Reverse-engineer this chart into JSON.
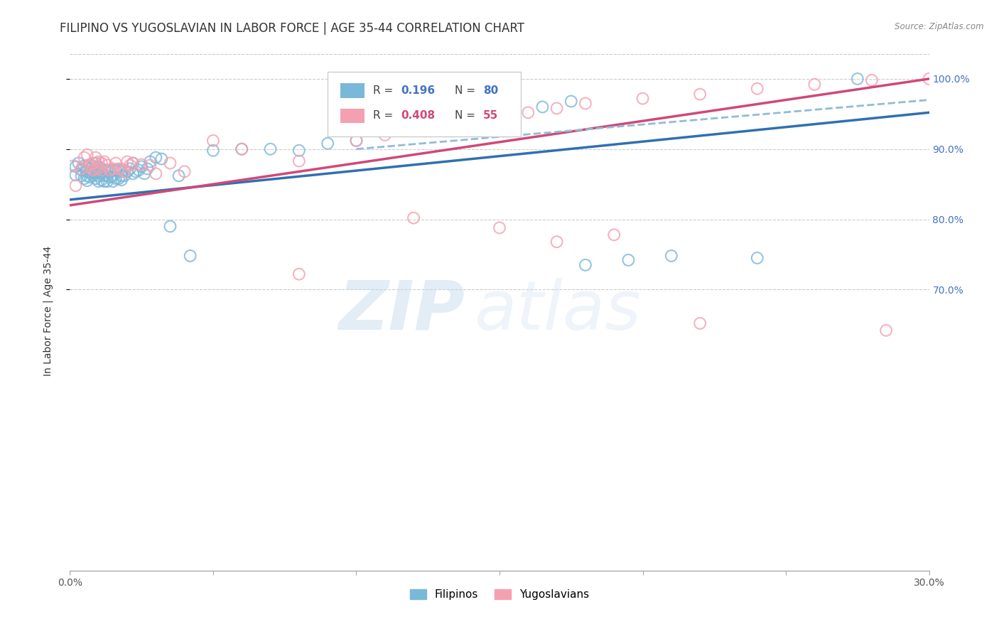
{
  "title": "FILIPINO VS YUGOSLAVIAN IN LABOR FORCE | AGE 35-44 CORRELATION CHART",
  "source": "Source: ZipAtlas.com",
  "ylabel": "In Labor Force | Age 35-44",
  "xlim": [
    0.0,
    0.3
  ],
  "ylim": [
    0.3,
    1.04
  ],
  "yticks_right": [
    0.7,
    0.8,
    0.9,
    1.0
  ],
  "ytick_labels_right": [
    "70.0%",
    "80.0%",
    "90.0%",
    "100.0%"
  ],
  "blue_color": "#7ab8d9",
  "pink_color": "#f4a0b0",
  "blue_line_color": "#3070b0",
  "pink_line_color": "#d04878",
  "dashed_line_color": "#90bcd8",
  "title_fontsize": 12,
  "axis_label_fontsize": 10,
  "tick_fontsize": 10,
  "blue_scatter_x": [
    0.002,
    0.002,
    0.003,
    0.004,
    0.004,
    0.005,
    0.005,
    0.006,
    0.006,
    0.006,
    0.006,
    0.007,
    0.007,
    0.007,
    0.007,
    0.008,
    0.008,
    0.008,
    0.009,
    0.009,
    0.009,
    0.009,
    0.01,
    0.01,
    0.01,
    0.01,
    0.011,
    0.011,
    0.011,
    0.012,
    0.012,
    0.012,
    0.013,
    0.013,
    0.013,
    0.014,
    0.014,
    0.015,
    0.015,
    0.015,
    0.016,
    0.016,
    0.017,
    0.017,
    0.018,
    0.018,
    0.018,
    0.019,
    0.02,
    0.021,
    0.022,
    0.022,
    0.023,
    0.024,
    0.025,
    0.026,
    0.027,
    0.028,
    0.03,
    0.032,
    0.035,
    0.038,
    0.042,
    0.05,
    0.06,
    0.07,
    0.08,
    0.09,
    0.1,
    0.12,
    0.13,
    0.14,
    0.15,
    0.165,
    0.175,
    0.18,
    0.195,
    0.21,
    0.24,
    0.275
  ],
  "blue_scatter_y": [
    0.863,
    0.875,
    0.88,
    0.862,
    0.87,
    0.876,
    0.858,
    0.875,
    0.868,
    0.862,
    0.855,
    0.878,
    0.872,
    0.866,
    0.86,
    0.876,
    0.868,
    0.862,
    0.88,
    0.872,
    0.866,
    0.858,
    0.875,
    0.868,
    0.862,
    0.854,
    0.872,
    0.865,
    0.856,
    0.87,
    0.862,
    0.854,
    0.87,
    0.862,
    0.854,
    0.868,
    0.86,
    0.87,
    0.862,
    0.854,
    0.87,
    0.858,
    0.87,
    0.858,
    0.868,
    0.862,
    0.856,
    0.862,
    0.868,
    0.872,
    0.88,
    0.865,
    0.868,
    0.87,
    0.875,
    0.865,
    0.872,
    0.882,
    0.888,
    0.886,
    0.79,
    0.862,
    0.748,
    0.898,
    0.9,
    0.9,
    0.898,
    0.908,
    0.912,
    0.93,
    0.93,
    0.942,
    0.952,
    0.96,
    0.968,
    0.735,
    0.742,
    0.748,
    0.745,
    1.0
  ],
  "pink_scatter_x": [
    0.001,
    0.002,
    0.004,
    0.005,
    0.006,
    0.006,
    0.007,
    0.008,
    0.008,
    0.009,
    0.009,
    0.01,
    0.01,
    0.011,
    0.011,
    0.012,
    0.013,
    0.014,
    0.015,
    0.016,
    0.017,
    0.018,
    0.019,
    0.02,
    0.021,
    0.022,
    0.025,
    0.028,
    0.03,
    0.035,
    0.04,
    0.05,
    0.06,
    0.08,
    0.1,
    0.11,
    0.12,
    0.13,
    0.14,
    0.16,
    0.17,
    0.18,
    0.2,
    0.22,
    0.24,
    0.26,
    0.28,
    0.3,
    0.15,
    0.19,
    0.08,
    0.12,
    0.17,
    0.22,
    0.285
  ],
  "pink_scatter_y": [
    0.876,
    0.848,
    0.872,
    0.888,
    0.892,
    0.875,
    0.878,
    0.88,
    0.87,
    0.888,
    0.872,
    0.882,
    0.873,
    0.88,
    0.87,
    0.882,
    0.877,
    0.87,
    0.872,
    0.88,
    0.872,
    0.872,
    0.868,
    0.882,
    0.877,
    0.88,
    0.878,
    0.877,
    0.865,
    0.88,
    0.868,
    0.912,
    0.9,
    0.883,
    0.912,
    0.92,
    0.928,
    0.938,
    0.942,
    0.952,
    0.958,
    0.965,
    0.972,
    0.978,
    0.986,
    0.992,
    0.998,
    1.0,
    0.788,
    0.778,
    0.722,
    0.802,
    0.768,
    0.652,
    0.642
  ],
  "blue_trend_x": [
    0.0,
    0.3
  ],
  "blue_trend_y": [
    0.828,
    0.952
  ],
  "pink_trend_x": [
    0.0,
    0.3
  ],
  "pink_trend_y": [
    0.82,
    1.0
  ],
  "dashed_trend_x": [
    0.1,
    0.3
  ],
  "dashed_trend_y": [
    0.9,
    0.97
  ]
}
